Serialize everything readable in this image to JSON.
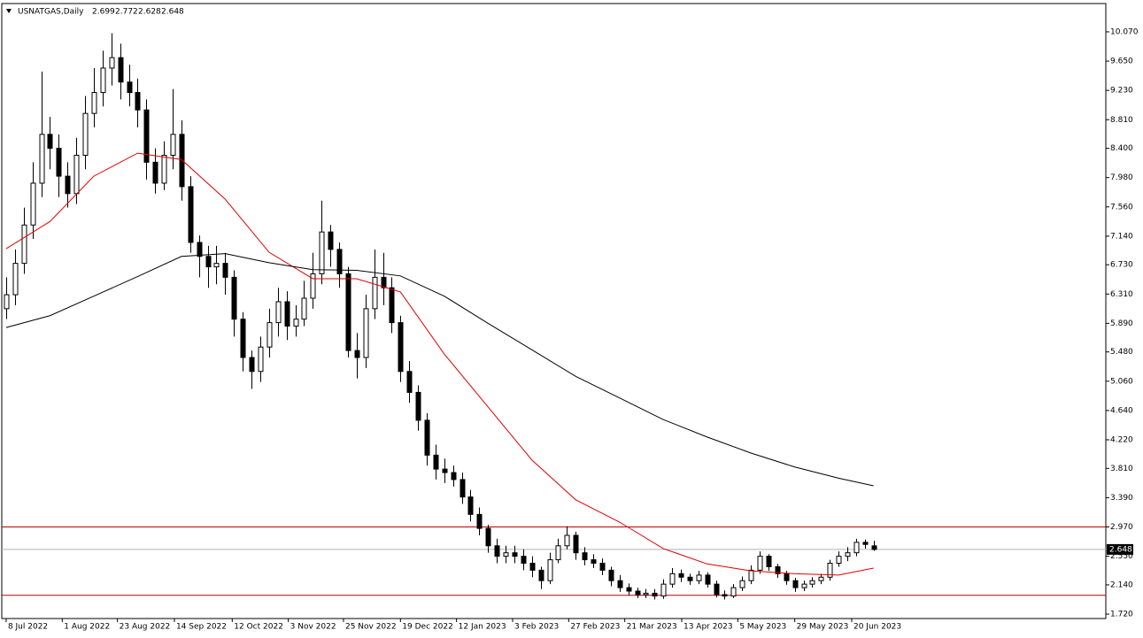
{
  "chart_data": {
    "type": "candlestick",
    "title": "USNATGAS,Daily",
    "open": [
      6.1,
      6.3,
      6.75,
      7.3,
      7.9,
      8.6,
      8.4,
      8.0,
      7.75,
      8.3,
      8.9,
      9.2,
      9.55,
      9.7,
      9.35,
      9.2,
      8.95,
      8.2,
      7.9,
      8.3,
      8.6,
      7.85,
      7.05,
      6.85,
      6.7,
      6.75,
      6.55,
      5.95,
      5.4,
      5.2,
      5.55,
      5.9,
      6.2,
      5.85,
      5.95,
      6.25,
      6.6,
      7.2,
      6.95,
      6.6,
      5.5,
      5.4,
      6.1,
      6.55,
      6.4,
      5.9,
      5.2,
      4.9,
      4.5,
      4.0,
      3.8,
      3.75,
      3.65,
      3.4,
      3.15,
      2.95,
      2.7,
      2.55,
      2.6,
      2.55,
      2.45,
      2.35,
      2.2,
      2.5,
      2.7,
      2.85,
      2.6,
      2.5,
      2.45,
      2.35,
      2.2,
      2.1,
      2.05,
      2.0,
      2.02,
      1.98,
      2.15,
      2.3,
      2.25,
      2.2,
      2.28,
      2.15,
      2.0,
      1.98,
      2.1,
      2.2,
      2.35,
      2.55,
      2.4,
      2.3,
      2.2,
      2.1,
      2.15,
      2.2,
      2.25,
      2.45,
      2.55,
      2.6,
      2.75,
      2.699
    ],
    "high": [
      6.55,
      6.95,
      7.55,
      8.2,
      9.5,
      8.85,
      8.6,
      8.2,
      8.55,
      9.15,
      9.55,
      9.8,
      10.05,
      9.9,
      9.6,
      9.4,
      9.1,
      8.4,
      8.5,
      9.25,
      8.8,
      8.0,
      7.15,
      7.0,
      7.0,
      6.9,
      6.65,
      6.05,
      5.5,
      5.7,
      6.1,
      6.4,
      6.35,
      6.15,
      6.5,
      6.9,
      7.65,
      7.3,
      7.05,
      6.7,
      5.75,
      6.3,
      6.95,
      6.9,
      6.55,
      6.0,
      5.35,
      5.0,
      4.6,
      4.15,
      3.95,
      3.85,
      3.75,
      3.5,
      3.25,
      3.0,
      2.8,
      2.7,
      2.7,
      2.65,
      2.55,
      2.4,
      2.6,
      2.8,
      2.98,
      2.9,
      2.68,
      2.58,
      2.52,
      2.4,
      2.28,
      2.16,
      2.1,
      2.08,
      2.08,
      2.22,
      2.38,
      2.36,
      2.3,
      2.34,
      2.32,
      2.2,
      2.06,
      2.15,
      2.26,
      2.42,
      2.62,
      2.58,
      2.44,
      2.34,
      2.24,
      2.2,
      2.25,
      2.3,
      2.5,
      2.62,
      2.68,
      2.8,
      2.79,
      2.772
    ],
    "low": [
      5.95,
      6.15,
      6.6,
      7.1,
      7.7,
      8.1,
      7.7,
      7.55,
      7.6,
      8.1,
      8.7,
      9.0,
      9.3,
      9.1,
      9.0,
      8.7,
      7.95,
      7.75,
      7.8,
      8.1,
      7.65,
      6.9,
      6.55,
      6.4,
      6.45,
      6.3,
      5.7,
      5.2,
      4.95,
      5.05,
      5.4,
      5.7,
      5.65,
      5.7,
      5.85,
      6.1,
      6.45,
      6.7,
      6.4,
      5.4,
      5.1,
      5.25,
      5.95,
      6.15,
      5.75,
      5.05,
      4.75,
      4.35,
      3.85,
      3.65,
      3.6,
      3.55,
      3.3,
      3.05,
      2.85,
      2.6,
      2.45,
      2.45,
      2.45,
      2.35,
      2.25,
      2.08,
      2.15,
      2.45,
      2.65,
      2.5,
      2.42,
      2.38,
      2.28,
      2.12,
      2.04,
      1.99,
      1.95,
      1.95,
      1.93,
      1.94,
      2.1,
      2.18,
      2.14,
      2.15,
      2.1,
      1.96,
      1.93,
      1.95,
      2.05,
      2.15,
      2.3,
      2.34,
      2.24,
      2.14,
      2.04,
      2.05,
      2.1,
      2.15,
      2.2,
      2.4,
      2.48,
      2.55,
      2.66,
      2.628
    ],
    "close": [
      6.3,
      6.75,
      7.3,
      7.9,
      8.6,
      8.4,
      8.0,
      7.75,
      8.3,
      8.9,
      9.2,
      9.55,
      9.7,
      9.35,
      9.2,
      8.95,
      8.2,
      7.9,
      8.3,
      8.6,
      7.85,
      7.05,
      6.85,
      6.7,
      6.75,
      6.55,
      5.95,
      5.4,
      5.2,
      5.55,
      5.9,
      6.2,
      5.85,
      5.95,
      6.25,
      6.6,
      7.2,
      6.95,
      6.6,
      5.5,
      5.4,
      6.1,
      6.55,
      6.4,
      5.9,
      5.2,
      4.9,
      4.5,
      4.0,
      3.8,
      3.75,
      3.65,
      3.4,
      3.15,
      2.95,
      2.7,
      2.55,
      2.6,
      2.55,
      2.45,
      2.35,
      2.2,
      2.5,
      2.7,
      2.85,
      2.6,
      2.5,
      2.45,
      2.35,
      2.2,
      2.1,
      2.05,
      2.0,
      2.02,
      1.98,
      2.15,
      2.3,
      2.25,
      2.2,
      2.28,
      2.15,
      2.0,
      1.98,
      2.1,
      2.2,
      2.35,
      2.55,
      2.4,
      2.3,
      2.2,
      2.1,
      2.15,
      2.2,
      2.25,
      2.45,
      2.55,
      2.6,
      2.75,
      2.72,
      2.648
    ],
    "series": [
      {
        "color": "#e00000",
        "x": [
          0,
          5,
          10,
          15,
          20,
          25,
          30,
          35,
          40,
          45,
          50,
          55,
          60,
          65,
          70,
          75,
          80,
          85,
          90,
          95,
          99
        ],
        "values": [
          6.96,
          7.35,
          8.0,
          8.33,
          8.24,
          7.67,
          6.91,
          6.53,
          6.53,
          6.34,
          5.45,
          4.69,
          3.93,
          3.36,
          3.04,
          2.66,
          2.44,
          2.34,
          2.3,
          2.28,
          2.38
        ]
      },
      {
        "color": "#000000",
        "x": [
          0,
          5,
          10,
          15,
          20,
          25,
          30,
          35,
          40,
          45,
          50,
          55,
          60,
          65,
          70,
          75,
          80,
          85,
          90,
          95,
          99
        ],
        "values": [
          5.83,
          6.0,
          6.28,
          6.56,
          6.85,
          6.89,
          6.76,
          6.66,
          6.65,
          6.57,
          6.28,
          5.89,
          5.51,
          5.13,
          4.82,
          4.51,
          4.26,
          4.03,
          3.83,
          3.67,
          3.56
        ]
      }
    ],
    "hlines": [
      {
        "value": 2.97,
        "color": "#c00000"
      },
      {
        "value": 1.99,
        "color": "#c00000"
      }
    ],
    "price_line_color": "#b0b0b0",
    "xlim": [
      -0.5,
      125.5
    ],
    "xticks": [
      {
        "value": 0,
        "label": "8 Jul 2022"
      },
      {
        "value": 6.4,
        "label": "1 Aug 2022"
      },
      {
        "value": 12.7,
        "label": "23 Aug 2022"
      },
      {
        "value": 19.2,
        "label": "14 Sep 2022"
      },
      {
        "value": 25.8,
        "label": "12 Oct 2022"
      },
      {
        "value": 32.2,
        "label": "3 Nov 2022"
      },
      {
        "value": 38.5,
        "label": "25 Nov 2022"
      },
      {
        "value": 45,
        "label": "19 Dec 2022"
      },
      {
        "value": 51.4,
        "label": "12 Jan 2023"
      },
      {
        "value": 57.8,
        "label": "3 Feb 2023"
      },
      {
        "value": 64.2,
        "label": "27 Feb 2023"
      },
      {
        "value": 70.6,
        "label": "21 Mar 2023"
      },
      {
        "value": 77.1,
        "label": "13 Apr 2023"
      },
      {
        "value": 83.5,
        "label": "5 May 2023"
      },
      {
        "value": 90,
        "label": "29 May 2023"
      },
      {
        "value": 96.5,
        "label": "20 Jun 2023"
      }
    ],
    "ylim": [
      1.657,
      10.463
    ],
    "yticks": [
      {
        "value": 10.07,
        "label": "10.070"
      },
      {
        "value": 9.65,
        "label": "9.650"
      },
      {
        "value": 9.23,
        "label": "9.230"
      },
      {
        "value": 8.81,
        "label": "8.810"
      },
      {
        "value": 8.4,
        "label": "8.400"
      },
      {
        "value": 7.98,
        "label": "7.980"
      },
      {
        "value": 7.56,
        "label": "7.560"
      },
      {
        "value": 7.14,
        "label": "7.140"
      },
      {
        "value": 6.73,
        "label": "6.730"
      },
      {
        "value": 6.31,
        "label": "6.310"
      },
      {
        "value": 5.89,
        "label": "5.890"
      },
      {
        "value": 5.48,
        "label": "5.480"
      },
      {
        "value": 5.06,
        "label": "5.060"
      },
      {
        "value": 4.64,
        "label": "4.640"
      },
      {
        "value": 4.22,
        "label": "4.220"
      },
      {
        "value": 3.81,
        "label": "3.810"
      },
      {
        "value": 3.39,
        "label": "3.390"
      },
      {
        "value": 2.97,
        "label": "2.970"
      },
      {
        "value": 2.55,
        "label": "2.550"
      },
      {
        "value": 2.14,
        "label": "2.140"
      },
      {
        "value": 1.72,
        "label": "1.720"
      }
    ]
  }
}
